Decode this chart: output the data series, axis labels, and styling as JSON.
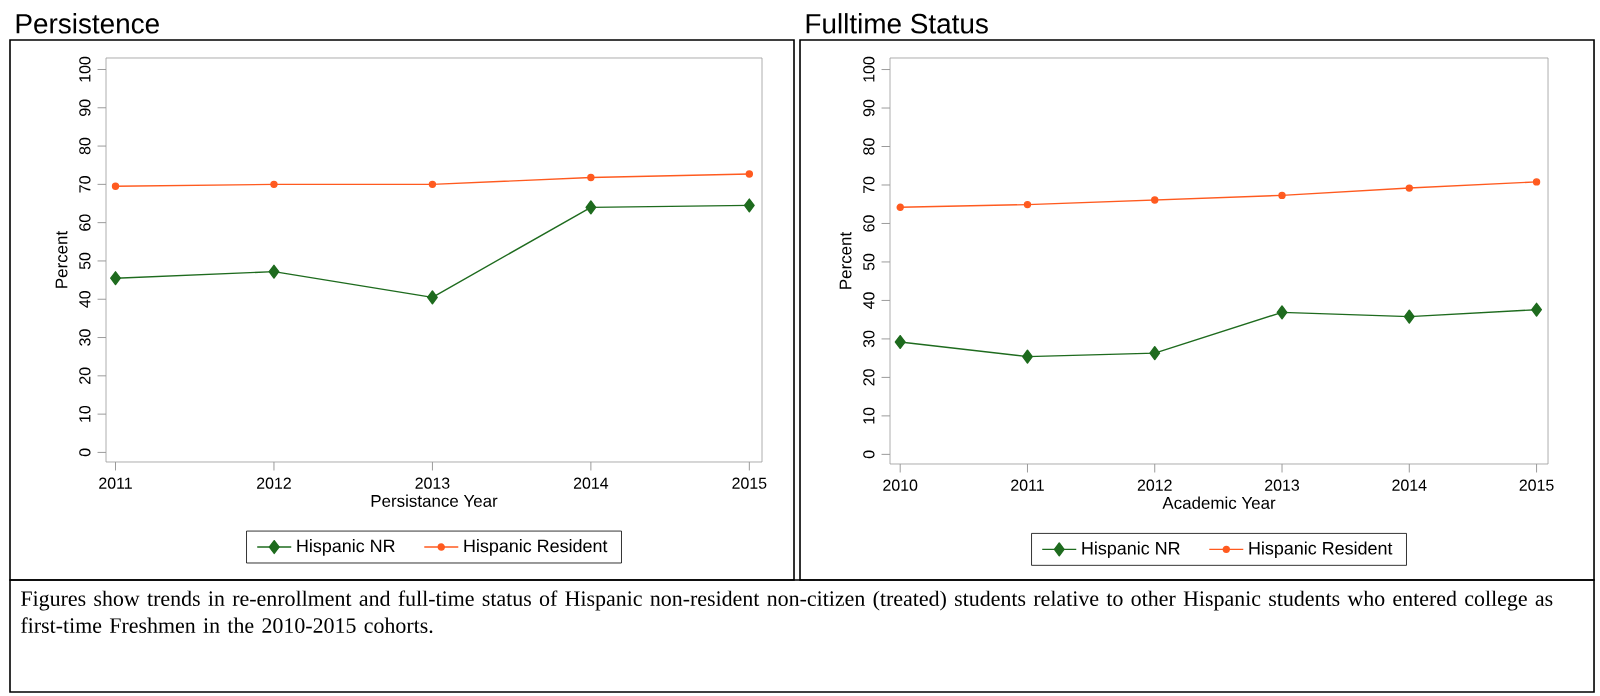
{
  "chart_data": [
    {
      "type": "line",
      "title": "Persistence",
      "xlabel": "Persistance Year",
      "ylabel": "Percent",
      "x": [
        2011,
        2012,
        2013,
        2014,
        2015
      ],
      "series": [
        {
          "name": "Hispanic NR",
          "color": "#1e6b1e",
          "marker": "diamond",
          "values": [
            45.5,
            47.2,
            40.5,
            64,
            64.5
          ]
        },
        {
          "name": "Hispanic Resident",
          "color": "#ff5a1f",
          "marker": "circle",
          "values": [
            69.5,
            70,
            70,
            71.8,
            72.7
          ]
        }
      ],
      "xlim": [
        2010.94,
        2015.08
      ],
      "ylim": [
        -2.5,
        103
      ],
      "xticks": [
        2011,
        2012,
        2013,
        2014,
        2015
      ],
      "yticks": [
        0,
        10,
        20,
        30,
        40,
        50,
        60,
        70,
        80,
        90,
        100
      ],
      "grid": false,
      "legend": "bottom",
      "annotations": [
        "Figures show trends in re-enrollment and full-time status of Hispanic non-resident non-citizen (treated) students relative to other Hispanic students who entered college as first-time Freshmen in the 2010-2015 cohorts."
      ]
    },
    {
      "type": "line",
      "title": "Fulltime Status",
      "xlabel": "Academic Year",
      "ylabel": "Percent",
      "x": [
        2010,
        2011,
        2012,
        2013,
        2014,
        2015
      ],
      "series": [
        {
          "name": "Hispanic NR",
          "color": "#1e6b1e",
          "marker": "diamond",
          "values": [
            29.2,
            25.4,
            26.3,
            36.9,
            35.8,
            37.6
          ]
        },
        {
          "name": "Hispanic Resident",
          "color": "#ff5a1f",
          "marker": "circle",
          "values": [
            64.2,
            64.9,
            66.1,
            67.3,
            69.2,
            70.8
          ]
        }
      ],
      "xlim": [
        2009.92,
        2015.09
      ],
      "ylim": [
        -2.5,
        103
      ],
      "xticks": [
        2010,
        2011,
        2012,
        2013,
        2014,
        2015
      ],
      "yticks": [
        0,
        10,
        20,
        30,
        40,
        50,
        60,
        70,
        80,
        90,
        100
      ],
      "grid": false,
      "legend": "bottom"
    }
  ]
}
